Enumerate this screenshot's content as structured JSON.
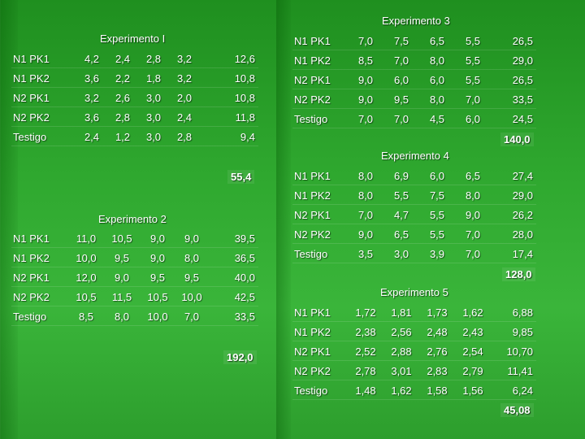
{
  "experiments": [
    {
      "title": "Experimento I",
      "rows": [
        {
          "label": "N1 PK1",
          "values": [
            "4,2",
            "2,4",
            "2,8",
            "3,2"
          ],
          "total": "12,6"
        },
        {
          "label": "N1 PK2",
          "values": [
            "3,6",
            "2,2",
            "1,8",
            "3,2"
          ],
          "total": "10,8"
        },
        {
          "label": "N2 PK1",
          "values": [
            "3,2",
            "2,6",
            "3,0",
            "2,0"
          ],
          "total": "10,8"
        },
        {
          "label": "N2 PK2",
          "values": [
            "3,6",
            "2,8",
            "3,0",
            "2,4"
          ],
          "total": "11,8"
        },
        {
          "label": "Testigo",
          "values": [
            "2,4",
            "1,2",
            "3,0",
            "2,8"
          ],
          "total": "9,4"
        }
      ],
      "grand_total": "55,4"
    },
    {
      "title": "Experimento 2",
      "rows": [
        {
          "label": "N1 PK1",
          "values": [
            "11,0",
            "10,5",
            "9,0",
            "9,0"
          ],
          "total": "39,5"
        },
        {
          "label": "N1 PK2",
          "values": [
            "10,0",
            "9,5",
            "9,0",
            "8,0"
          ],
          "total": "36,5"
        },
        {
          "label": "N2 PK1",
          "values": [
            "12,0",
            "9,0",
            "9,5",
            "9,5"
          ],
          "total": "40,0"
        },
        {
          "label": "N2 PK2",
          "values": [
            "10,5",
            "11,5",
            "10,5",
            "10,0"
          ],
          "total": "42,5"
        },
        {
          "label": "Testigo",
          "values": [
            "8,5",
            "8,0",
            "10,0",
            "7,0"
          ],
          "total": "33,5"
        }
      ],
      "grand_total": "192,0"
    },
    {
      "title": "Experimento 3",
      "rows": [
        {
          "label": "N1 PK1",
          "values": [
            "7,0",
            "7,5",
            "6,5",
            "5,5"
          ],
          "total": "26,5"
        },
        {
          "label": "N1 PK2",
          "values": [
            "8,5",
            "7,0",
            "8,0",
            "5,5"
          ],
          "total": "29,0"
        },
        {
          "label": "N2 PK1",
          "values": [
            "9,0",
            "6,0",
            "6,0",
            "5,5"
          ],
          "total": "26,5"
        },
        {
          "label": "N2 PK2",
          "values": [
            "9,0",
            "9,5",
            "8,0",
            "7,0"
          ],
          "total": "33,5"
        },
        {
          "label": "Testigo",
          "values": [
            "7,0",
            "7,0",
            "4,5",
            "6,0"
          ],
          "total": "24,5"
        }
      ],
      "grand_total": "140,0"
    },
    {
      "title": "Experimento 4",
      "rows": [
        {
          "label": "N1 PK1",
          "values": [
            "8,0",
            "6,9",
            "6,0",
            "6,5"
          ],
          "total": "27,4"
        },
        {
          "label": "N1 PK2",
          "values": [
            "8,0",
            "5,5",
            "7,5",
            "8,0"
          ],
          "total": "29,0"
        },
        {
          "label": "N2 PK1",
          "values": [
            "7,0",
            "4,7",
            "5,5",
            "9,0"
          ],
          "total": "26,2"
        },
        {
          "label": "N2 PK2",
          "values": [
            "9,0",
            "6,5",
            "5,5",
            "7,0"
          ],
          "total": "28,0"
        },
        {
          "label": "Testigo",
          "values": [
            "3,5",
            "3,0",
            "3,9",
            "7,0"
          ],
          "total": "17,4"
        }
      ],
      "grand_total": "128,0"
    },
    {
      "title": "Experimento 5",
      "rows": [
        {
          "label": "N1 PK1",
          "values": [
            "1,72",
            "1,81",
            "1,73",
            "1,62"
          ],
          "total": "6,88"
        },
        {
          "label": "N1 PK2",
          "values": [
            "2,38",
            "2,56",
            "2,48",
            "2,43"
          ],
          "total": "9,85"
        },
        {
          "label": "N2 PK1",
          "values": [
            "2,52",
            "2,88",
            "2,76",
            "2,54"
          ],
          "total": "10,70"
        },
        {
          "label": "N2 PK2",
          "values": [
            "2,78",
            "3,01",
            "2,83",
            "2,79"
          ],
          "total": "11,41"
        },
        {
          "label": "Testigo",
          "values": [
            "1,48",
            "1,62",
            "1,58",
            "1,56"
          ],
          "total": "6,24"
        }
      ],
      "grand_total": "45,08"
    }
  ]
}
